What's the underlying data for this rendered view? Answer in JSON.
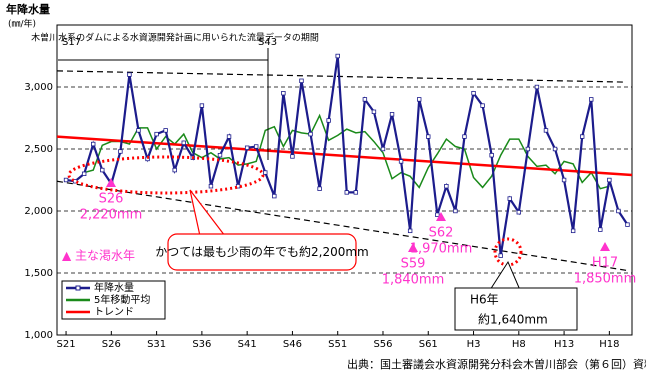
{
  "chart_data": {
    "type": "line",
    "y_label": "年降水量",
    "y_unit": "(㎜/年)",
    "xlim": [
      1945,
      2008.5
    ],
    "ylim": [
      1000,
      3500
    ],
    "xticks": [
      {
        "value": 1946,
        "label": "S21"
      },
      {
        "value": 1951,
        "label": "S26"
      },
      {
        "value": 1956,
        "label": "S31"
      },
      {
        "value": 1961,
        "label": "S36"
      },
      {
        "value": 1966,
        "label": "S41"
      },
      {
        "value": 1971,
        "label": "S46"
      },
      {
        "value": 1976,
        "label": "S51"
      },
      {
        "value": 1981,
        "label": "S56"
      },
      {
        "value": 1986,
        "label": "S61"
      },
      {
        "value": 1991,
        "label": "H3"
      },
      {
        "value": 1996,
        "label": "H8"
      },
      {
        "value": 2001,
        "label": "H13"
      },
      {
        "value": 2006,
        "label": "H18"
      }
    ],
    "yticks": [
      {
        "value": 1000,
        "label": "1,000"
      },
      {
        "value": 1500,
        "label": "1,500"
      },
      {
        "value": 2000,
        "label": "2,000"
      },
      {
        "value": 2500,
        "label": "2,500"
      },
      {
        "value": 3000,
        "label": "3,000"
      }
    ],
    "grid": true,
    "x": [
      1946,
      1947,
      1948,
      1949,
      1950,
      1951,
      1952,
      1953,
      1954,
      1955,
      1956,
      1957,
      1958,
      1959,
      1960,
      1961,
      1962,
      1963,
      1964,
      1965,
      1966,
      1967,
      1968,
      1969,
      1970,
      1971,
      1972,
      1973,
      1974,
      1975,
      1976,
      1977,
      1978,
      1979,
      1980,
      1981,
      1982,
      1983,
      1984,
      1985,
      1986,
      1987,
      1988,
      1989,
      1990,
      1991,
      1992,
      1993,
      1994,
      1995,
      1996,
      1997,
      1998,
      1999,
      2000,
      2001,
      2002,
      2003,
      2004,
      2005,
      2006,
      2007,
      2008
    ],
    "series": [
      {
        "name": "年降水量",
        "color": "#1c1c8c",
        "values": [
          2250,
          2240,
          2300,
          2540,
          2330,
          2220,
          2480,
          3100,
          2650,
          2420,
          2620,
          2650,
          2330,
          2550,
          2430,
          2850,
          2200,
          2450,
          2600,
          2200,
          2510,
          2520,
          2310,
          2120,
          2950,
          2440,
          3050,
          2620,
          2180,
          2730,
          3250,
          2150,
          2150,
          2900,
          2800,
          2500,
          2780,
          2400,
          1840,
          2900,
          2600,
          1970,
          2200,
          2000,
          2600,
          2950,
          2850,
          2450,
          1640,
          2100,
          1990,
          2500,
          3000,
          2650,
          2500,
          2250,
          1840,
          2600,
          2900,
          1850,
          2250,
          2000,
          1890
        ]
      },
      {
        "name": "5年移動平均",
        "color": "#1a8a1a",
        "values": [
          null,
          null,
          2310,
          2330,
          2530,
          2560,
          2560,
          2540,
          2670,
          2670,
          2500,
          2600,
          2540,
          2620,
          2470,
          2430,
          2470,
          2420,
          2430,
          2370,
          2380,
          2400,
          2650,
          2680,
          2520,
          2650,
          2630,
          2620,
          2770,
          2570,
          2610,
          2660,
          2630,
          2640,
          2560,
          2470,
          2260,
          2310,
          2280,
          2190,
          2350,
          2460,
          2580,
          2520,
          2500,
          2270,
          2190,
          2280,
          2450,
          2580,
          2580,
          2440,
          2360,
          2370,
          2300,
          2400,
          2380,
          2230,
          2310,
          2180,
          2200,
          null,
          null
        ]
      },
      {
        "name": "トレンド",
        "color": "#ff0000",
        "x": [
          1945,
          2008.5
        ],
        "values": [
          2600,
          2290
        ]
      }
    ],
    "envelope": {
      "upper": {
        "x": [
          1945,
          2007.5
        ],
        "values": [
          3130,
          3040
        ]
      },
      "lower": {
        "x": [
          1945,
          2008
        ],
        "values": [
          2240,
          1520
        ]
      }
    },
    "period_note": "木曽川水系のダムによる水資源開発計画に用いられた流量データの期間",
    "period_start": "S17",
    "period_end": "S43",
    "drought_legend": "▲ 主な渇水年",
    "droughts": [
      {
        "label": "S26",
        "value_label": "2,220mm"
      },
      {
        "label": "S59",
        "value_label": "1,840mm"
      },
      {
        "label": "S62",
        "value_label": "1,970mm"
      },
      {
        "label": "H17",
        "value_label": "1,850mm"
      }
    ],
    "callout": "かつては最も少雨の年でも約2,200mm",
    "h6_title": "H6年",
    "h6_value": "約1,640mm",
    "source": "出典：国土審議会水資源開発分科会木曽川部会（第６回）資料"
  }
}
